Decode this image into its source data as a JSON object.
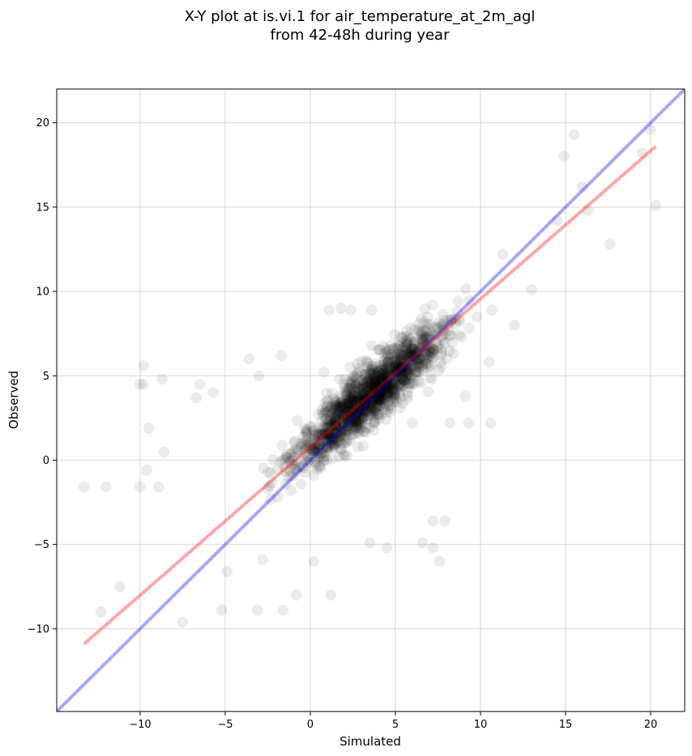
{
  "chart_data": {
    "type": "scatter",
    "title_lines": [
      "X-Y plot at is.vi.1 for air_temperature_at_2m_agl",
      "from 42-48h during year"
    ],
    "xlabel": "Simulated",
    "ylabel": "Observed",
    "xlim": [
      -14.9,
      22.0
    ],
    "ylim": [
      -14.9,
      22.0
    ],
    "xticks": [
      -10,
      -5,
      0,
      5,
      10,
      15,
      20
    ],
    "yticks": [
      -10,
      -5,
      0,
      5,
      10,
      15,
      20
    ],
    "xtick_labels": [
      "−10",
      "−5",
      "0",
      "5",
      "10",
      "15",
      "20"
    ],
    "ytick_labels": [
      "−10",
      "−5",
      "0",
      "5",
      "10",
      "15",
      "20"
    ],
    "grid": true,
    "point_color": "#000000",
    "point_alpha": 0.08,
    "one_to_one_line": {
      "x": [
        -14.9,
        22.0
      ],
      "y": [
        -14.9,
        22.0
      ],
      "color": "#0000ff"
    },
    "fit_line": {
      "x": [
        -13.3,
        20.3
      ],
      "y": [
        -10.9,
        18.6
      ],
      "color": "#ff0000"
    },
    "outlier_points": [
      [
        -12.3,
        -9.0
      ],
      [
        -11.2,
        -7.5
      ],
      [
        -10.0,
        4.5
      ],
      [
        -9.8,
        4.5
      ],
      [
        -9.5,
        1.9
      ],
      [
        -9.8,
        5.6
      ],
      [
        -8.7,
        4.8
      ],
      [
        -13.3,
        -1.6
      ],
      [
        -12.0,
        -1.6
      ],
      [
        -10.0,
        -1.6
      ],
      [
        -8.9,
        -1.6
      ],
      [
        -9.6,
        -0.6
      ],
      [
        -8.6,
        0.5
      ],
      [
        -6.5,
        4.5
      ],
      [
        -6.7,
        3.7
      ],
      [
        -5.7,
        4.0
      ],
      [
        -3.6,
        6.0
      ],
      [
        -3.0,
        5.0
      ],
      [
        -1.7,
        6.2
      ],
      [
        0.8,
        5.2
      ],
      [
        2.4,
        8.9
      ],
      [
        3.6,
        8.9
      ],
      [
        2.8,
        5.2
      ],
      [
        1.1,
        8.9
      ],
      [
        1.8,
        9.0
      ],
      [
        3.3,
        5.5
      ],
      [
        6.0,
        2.2
      ],
      [
        8.2,
        2.2
      ],
      [
        9.3,
        2.2
      ],
      [
        10.6,
        2.2
      ],
      [
        9.1,
        3.8
      ],
      [
        7.2,
        -3.6
      ],
      [
        7.9,
        -3.6
      ],
      [
        6.6,
        -4.9
      ],
      [
        7.2,
        -5.2
      ],
      [
        7.6,
        -6.0
      ],
      [
        4.5,
        -5.2
      ],
      [
        3.5,
        -4.9
      ],
      [
        1.2,
        -8.0
      ],
      [
        -0.8,
        -8.0
      ],
      [
        -1.6,
        -8.9
      ],
      [
        -3.1,
        -8.9
      ],
      [
        -5.2,
        -8.9
      ],
      [
        -7.5,
        -9.6
      ],
      [
        -4.9,
        -6.6
      ],
      [
        -2.8,
        -5.9
      ],
      [
        0.2,
        -6.0
      ],
      [
        15.5,
        19.3
      ],
      [
        17.6,
        12.8
      ],
      [
        20.3,
        15.1
      ],
      [
        19.5,
        18.2
      ],
      [
        20.0,
        19.6
      ],
      [
        14.9,
        18.0
      ],
      [
        16.3,
        14.8
      ],
      [
        14.5,
        14.2
      ],
      [
        13.0,
        10.1
      ],
      [
        10.5,
        5.8
      ],
      [
        12.0,
        8.0
      ],
      [
        11.3,
        12.2
      ],
      [
        16.0,
        16.2
      ]
    ]
  }
}
